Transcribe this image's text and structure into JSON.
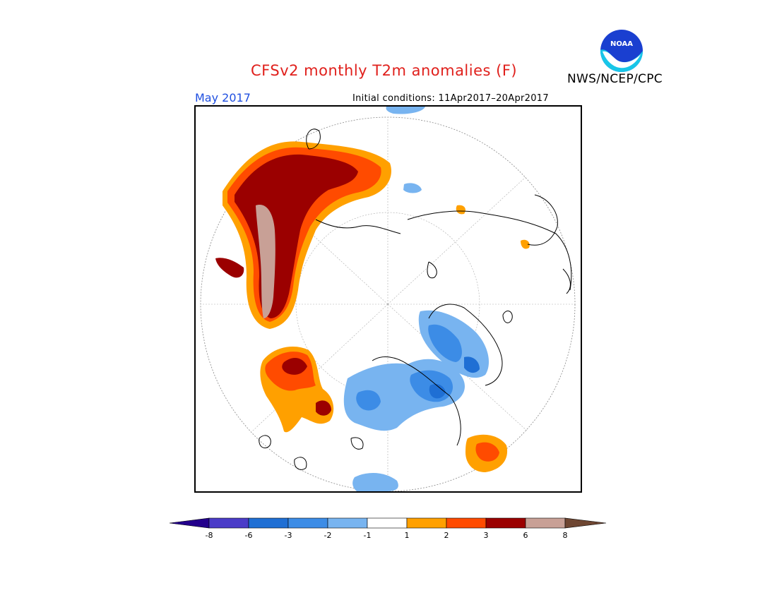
{
  "header": {
    "title": "CFSv2 monthly T2m anomalies (F)",
    "month": "May 2017",
    "initial_conditions": "Initial conditions: 11Apr2017–20Apr2017",
    "agency": "NWS/NCEP/CPC",
    "logo_text": "NOAA"
  },
  "map": {
    "projection": "north polar stereographic",
    "variable": "2m temperature anomaly",
    "units": "F"
  },
  "colorbar": {
    "ticks": [
      "-8",
      "-6",
      "-3",
      "-2",
      "-1",
      "1",
      "2",
      "3",
      "6",
      "8"
    ],
    "bins": [
      {
        "range": "< -8",
        "color": "#23008c"
      },
      {
        "range": "-8 to -6",
        "color": "#4b3cc8"
      },
      {
        "range": "-6 to -3",
        "color": "#1f6fd4"
      },
      {
        "range": "-3 to -2",
        "color": "#3c8ce6"
      },
      {
        "range": "-2 to -1",
        "color": "#78b4f0"
      },
      {
        "range": "-1 to 1",
        "color": "#ffffff"
      },
      {
        "range": "1 to 2",
        "color": "#ffa000"
      },
      {
        "range": "2 to 3",
        "color": "#ff4b00"
      },
      {
        "range": "3 to 6",
        "color": "#9b0000"
      },
      {
        "range": "6 to 8",
        "color": "#c8a096"
      },
      {
        "range": "> 8",
        "color": "#6e4632"
      }
    ]
  }
}
